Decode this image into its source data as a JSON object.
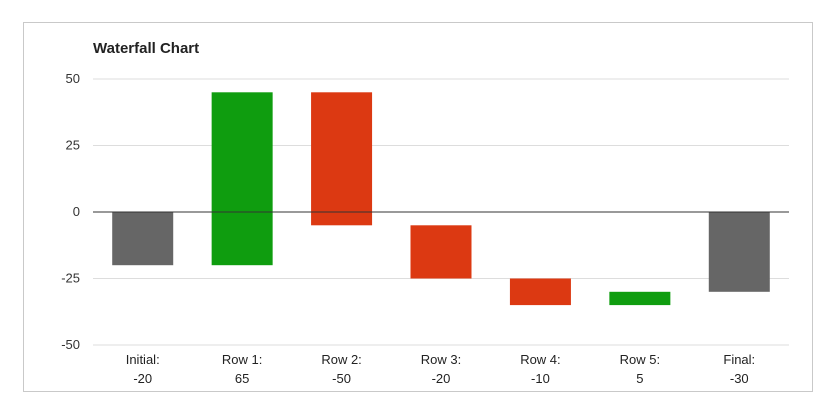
{
  "chart_data": {
    "type": "bar",
    "subtype": "waterfall",
    "title": "Waterfall Chart",
    "xlabel": "",
    "ylabel": "",
    "ylim": [
      -50,
      50
    ],
    "yticks": [
      50,
      25,
      0,
      -25,
      -50
    ],
    "grid": true,
    "legend": "none",
    "categories": [
      "Initial:",
      "Row 1:",
      "Row 2:",
      "Row 3:",
      "Row 4:",
      "Row 5:",
      "Final:"
    ],
    "value_labels": [
      "-20",
      "65",
      "-50",
      "-20",
      "-10",
      "5",
      "-30"
    ],
    "values": [
      -20,
      65,
      -50,
      -20,
      -10,
      5,
      -30
    ],
    "bars": [
      {
        "category": "Initial:",
        "start": 0,
        "end": -20,
        "kind": "total"
      },
      {
        "category": "Row 1:",
        "start": -20,
        "end": 45,
        "kind": "increase"
      },
      {
        "category": "Row 2:",
        "start": 45,
        "end": -5,
        "kind": "decrease"
      },
      {
        "category": "Row 3:",
        "start": -5,
        "end": -25,
        "kind": "decrease"
      },
      {
        "category": "Row 4:",
        "start": -25,
        "end": -35,
        "kind": "decrease"
      },
      {
        "category": "Row 5:",
        "start": -35,
        "end": -30,
        "kind": "increase"
      },
      {
        "category": "Final:",
        "start": 0,
        "end": -30,
        "kind": "total"
      }
    ],
    "colors": {
      "total": "#666666",
      "increase": "#0f9d0f",
      "decrease": "#dc3912",
      "grid": "#dddddd",
      "zero_line": "#333333"
    }
  }
}
